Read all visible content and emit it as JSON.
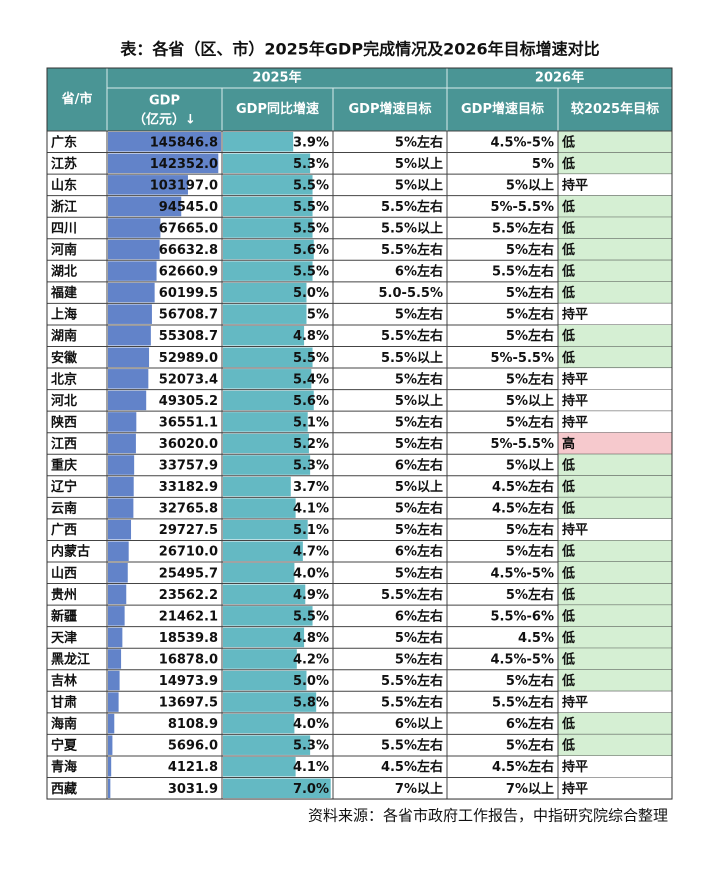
{
  "title": "表：各省（区、市）2025年GDP完成情况及2026年目标增速对比",
  "header": {
    "province": "省/市",
    "year2025": "2025年",
    "year2026": "2026年",
    "gdp": "GDP",
    "gdp_unit": "（亿元）↓",
    "growth": "GDP同比增速",
    "target2025": "GDP增速目标",
    "target2026": "GDP增速目标",
    "compare": "较2025年目标"
  },
  "table": {
    "rows": [
      [
        "广东",
        "145846.8",
        "3.9%",
        "5%左右",
        "4.5%-5%",
        "低"
      ],
      [
        "江苏",
        "142352.0",
        "5.3%",
        "5%以上",
        "5%",
        "低"
      ],
      [
        "山东",
        "103197.0",
        "5.5%",
        "5%以上",
        "5%以上",
        "持平"
      ],
      [
        "浙江",
        "94545.0",
        "5.5%",
        "5.5%左右",
        "5%-5.5%",
        "低"
      ],
      [
        "四川",
        "67665.0",
        "5.5%",
        "5.5%以上",
        "5.5%左右",
        "低"
      ],
      [
        "河南",
        "66632.8",
        "5.6%",
        "5.5%左右",
        "5%左右",
        "低"
      ],
      [
        "湖北",
        "62660.9",
        "5.5%",
        "6%左右",
        "5.5%左右",
        "低"
      ],
      [
        "福建",
        "60199.5",
        "5.0%",
        "5.0-5.5%",
        "5%左右",
        "低"
      ],
      [
        "上海",
        "56708.7",
        "5%",
        "5%左右",
        "5%左右",
        "持平"
      ],
      [
        "湖南",
        "55308.7",
        "4.8%",
        "5.5%左右",
        "5%左右",
        "低"
      ],
      [
        "安徽",
        "52989.0",
        "5.5%",
        "5.5%以上",
        "5%-5.5%",
        "低"
      ],
      [
        "北京",
        "52073.4",
        "5.4%",
        "5%左右",
        "5%左右",
        "持平"
      ],
      [
        "河北",
        "49305.2",
        "5.6%",
        "5%以上",
        "5%以上",
        "持平"
      ],
      [
        "陕西",
        "36551.1",
        "5.1%",
        "5%左右",
        "5%左右",
        "持平"
      ],
      [
        "江西",
        "36020.0",
        "5.2%",
        "5%左右",
        "5%-5.5%",
        "高"
      ],
      [
        "重庆",
        "33757.9",
        "5.3%",
        "6%左右",
        "5%以上",
        "低"
      ],
      [
        "辽宁",
        "33182.9",
        "3.7%",
        "5%以上",
        "4.5%左右",
        "低"
      ],
      [
        "云南",
        "32765.8",
        "4.1%",
        "5%左右",
        "4.5%左右",
        "低"
      ],
      [
        "广西",
        "29727.5",
        "5.1%",
        "5%左右",
        "5%左右",
        "持平"
      ],
      [
        "内蒙古",
        "26710.0",
        "4.7%",
        "6%左右",
        "5%左右",
        "低"
      ],
      [
        "山西",
        "25495.7",
        "4.0%",
        "5%左右",
        "4.5%-5%",
        "低"
      ],
      [
        "贵州",
        "23562.2",
        "4.9%",
        "5.5%左右",
        "5%左右",
        "低"
      ],
      [
        "新疆",
        "21462.1",
        "5.5%",
        "6%左右",
        "5.5%-6%",
        "低"
      ],
      [
        "天津",
        "18539.8",
        "4.8%",
        "5%左右",
        "4.5%",
        "低"
      ],
      [
        "黑龙江",
        "16878.0",
        "4.2%",
        "5%左右",
        "4.5%-5%",
        "低"
      ],
      [
        "吉林",
        "14973.9",
        "5.0%",
        "5.5%左右",
        "5%左右",
        "低"
      ],
      [
        "甘肃",
        "13697.5",
        "5.8%",
        "5.5%左右",
        "5.5%左右",
        "持平"
      ],
      [
        "海南",
        "8108.9",
        "4.0%",
        "6%以上",
        "6%左右",
        "低"
      ],
      [
        "宁夏",
        "5696.0",
        "5.3%",
        "5.5%左右",
        "5%左右",
        "低"
      ],
      [
        "青海",
        "4121.8",
        "4.1%",
        "4.5%左右",
        "4.5%左右",
        "持平"
      ],
      [
        "西藏",
        "3031.9",
        "7.0%",
        "7%以上",
        "7%以上",
        "持平"
      ]
    ]
  },
  "source": "资料来源：各省市政府工作报告，中指研究院综合整理"
}
